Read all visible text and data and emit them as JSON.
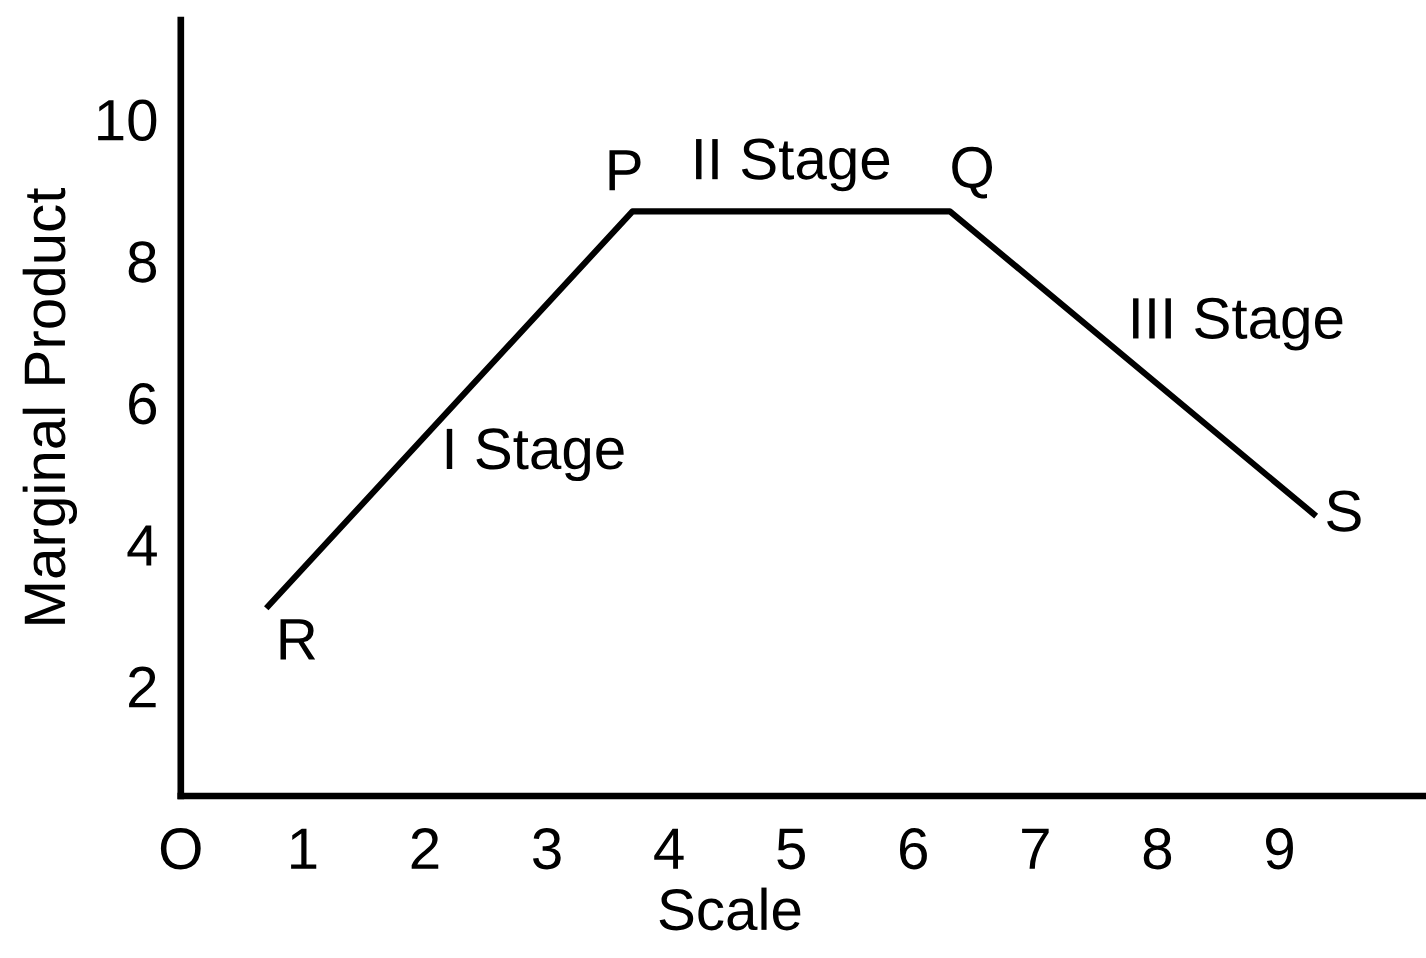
{
  "chart_data": {
    "type": "line",
    "xlabel": "Scale",
    "ylabel": "Marginal Product",
    "x": [
      0.7,
      3.7,
      6.3,
      9.3
    ],
    "values": [
      3.1,
      8.7,
      8.7,
      4.4
    ],
    "color": "#000000",
    "line_style": "solid",
    "xlim": [
      0,
      10.2
    ],
    "ylim": [
      0.45,
      11.4
    ],
    "xticks": [
      {
        "value": 0,
        "label": "O"
      },
      1,
      2,
      3,
      4,
      5,
      6,
      7,
      8,
      9
    ],
    "yticks": [
      2,
      4,
      6,
      8,
      10
    ],
    "annotations": [
      {
        "text": "R",
        "x": 0.7,
        "y": 3.1
      },
      {
        "text": "P",
        "x": 3.7,
        "y": 8.7
      },
      {
        "text": "Q",
        "x": 6.3,
        "y": 8.7
      },
      {
        "text": "S",
        "x": 9.3,
        "y": 4.4
      },
      {
        "text": "I Stage",
        "x": 2.3,
        "y": 6.1
      },
      {
        "text": "II Stage",
        "x": 5.0,
        "y": 8.7
      },
      {
        "text": "III Stage",
        "x": 8.1,
        "y": 6.1
      }
    ]
  }
}
